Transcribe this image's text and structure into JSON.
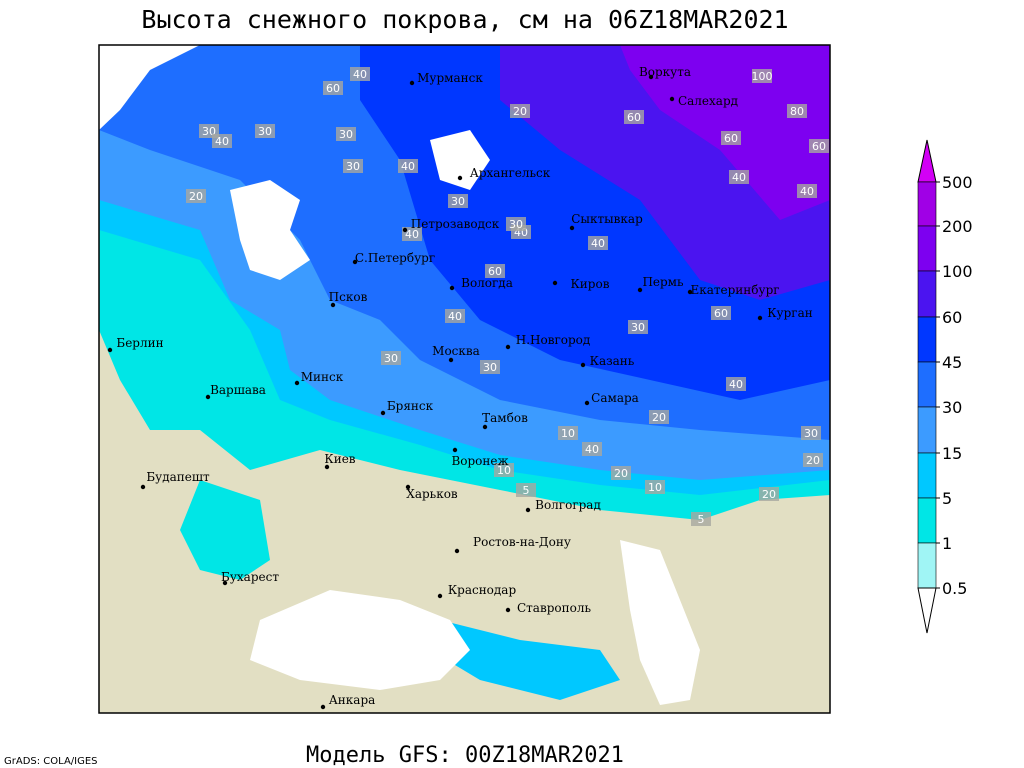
{
  "header": {
    "title": "Высота снежного покрова, см на 06Z18MAR2021"
  },
  "footer": {
    "model": "Модель GFS: 00Z18MAR2021",
    "credit": "GrADS: COLA/IGES"
  },
  "cities": [
    "Мурманск",
    "Воркута",
    "Салехард",
    "Архангельск",
    "Петрозаводск",
    "Сыктывкар",
    "С.Петербург",
    "Вологда",
    "Киров",
    "Пермь",
    "Екатеринбург",
    "Курган",
    "Псков",
    "Москва",
    "Н.Новгород",
    "Казань",
    "Берлин",
    "Варшава",
    "Минск",
    "Брянск",
    "Тамбов",
    "Самара",
    "Киев",
    "Воронеж",
    "Будапешт",
    "Харьков",
    "Волгоград",
    "Ростов-на-Дону",
    "Бухарест",
    "Краснодар",
    "Ставрополь",
    "Анкара"
  ],
  "contour_labels": [
    40,
    60,
    30,
    30,
    40,
    20,
    30,
    30,
    40,
    60,
    100,
    80,
    60,
    60,
    40,
    40,
    20,
    30,
    40,
    60,
    40,
    40,
    30,
    30,
    40,
    30,
    20,
    10,
    20,
    5,
    10,
    5,
    10,
    40,
    20,
    30,
    60,
    30,
    40,
    20
  ],
  "legend": {
    "levels": [
      500,
      200,
      100,
      60,
      45,
      30,
      15,
      5,
      1,
      0.5
    ],
    "colors": [
      "#d200f5",
      "#a000e6",
      "#7d00f0",
      "#4b14f0",
      "#0037ff",
      "#1e6eff",
      "#3c9bff",
      "#00c8ff",
      "#00e6e6",
      "#a0f5f5",
      "#ffffff"
    ]
  }
}
